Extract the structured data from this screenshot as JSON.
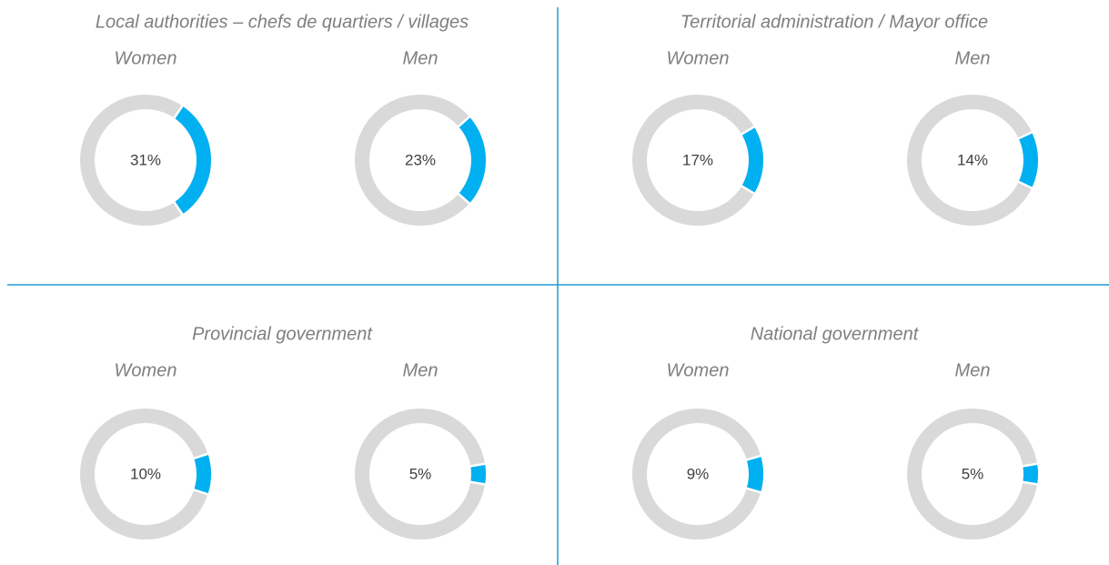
{
  "chart_data": [
    {
      "type": "donut",
      "title": "Local authorities – chefs de quartiers / villages",
      "categories": [
        "Women",
        "Men"
      ],
      "values": [
        31,
        23
      ],
      "value_labels": [
        "31%",
        "23%"
      ],
      "color": "#00b0f0",
      "track_color": "#d9d9d9"
    },
    {
      "type": "donut",
      "title": "Territorial administration / Mayor office",
      "categories": [
        "Women",
        "Men"
      ],
      "values": [
        17,
        14
      ],
      "value_labels": [
        "17%",
        "14%"
      ],
      "color": "#00b0f0",
      "track_color": "#d9d9d9"
    },
    {
      "type": "donut",
      "title": "Provincial government",
      "categories": [
        "Women",
        "Men"
      ],
      "values": [
        10,
        5
      ],
      "value_labels": [
        "10%",
        "5%"
      ],
      "color": "#00b0f0",
      "track_color": "#d9d9d9"
    },
    {
      "type": "donut",
      "title": "National government",
      "categories": [
        "Women",
        "Men"
      ],
      "values": [
        9,
        5
      ],
      "value_labels": [
        "9%",
        "5%"
      ],
      "color": "#00b0f0",
      "track_color": "#d9d9d9"
    }
  ]
}
